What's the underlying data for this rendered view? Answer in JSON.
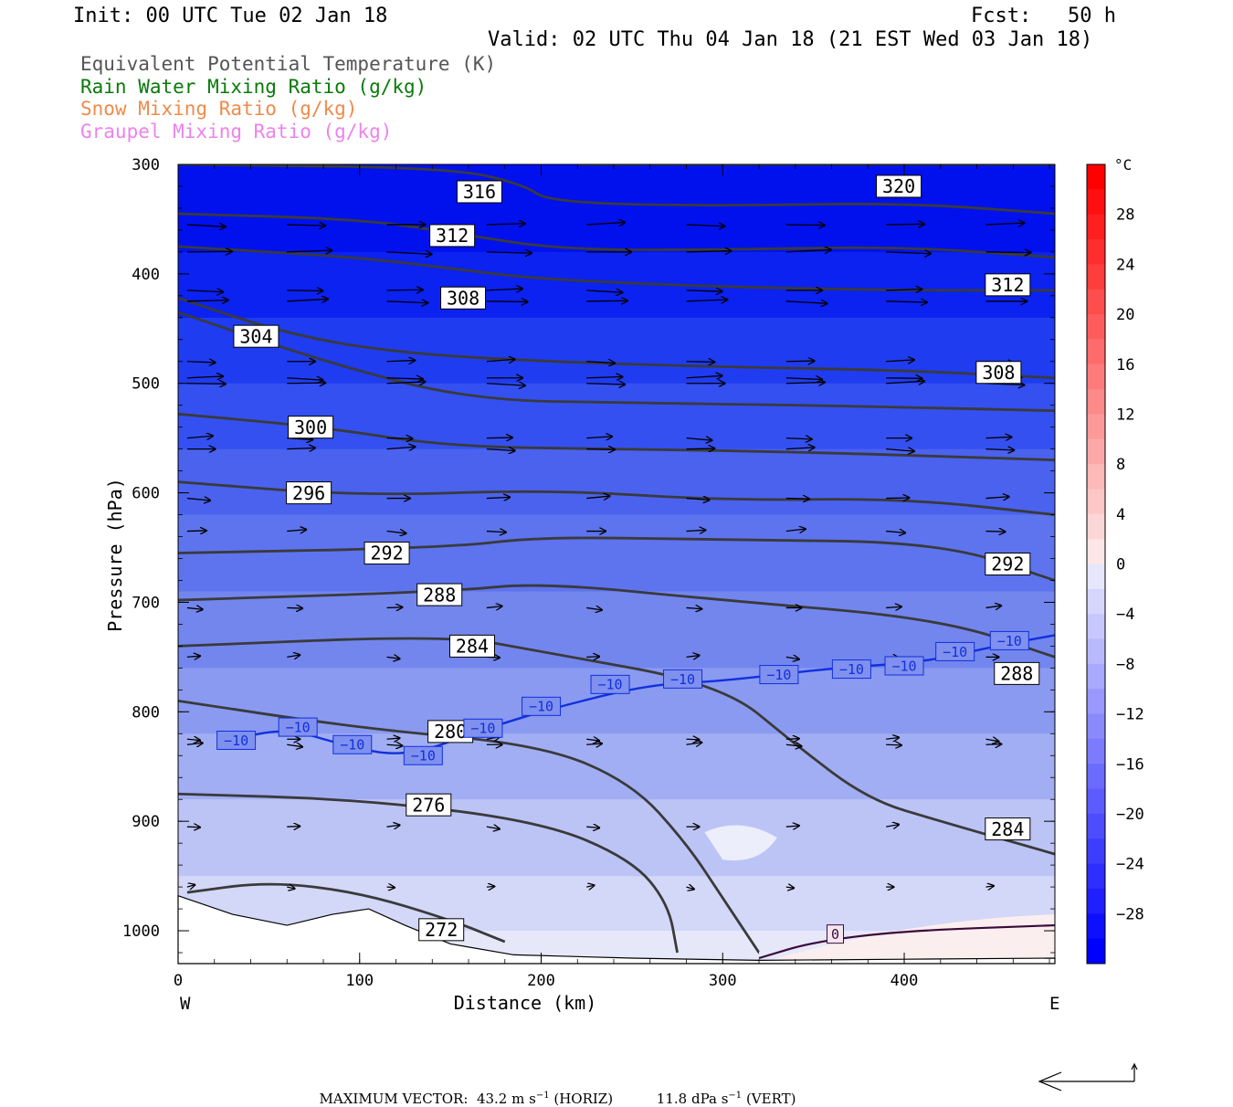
{
  "header": {
    "init": "Init: 00 UTC Tue 02 Jan 18",
    "fcst": "Fcst:   50 h",
    "valid": "Valid: 02 UTC Thu 04 Jan 18 (21 EST Wed 03 Jan 18)"
  },
  "legend": [
    {
      "text": "Equivalent Potential Temperature (K)",
      "color": "#555555"
    },
    {
      "text": "Rain Water Mixing Ratio (g/kg)",
      "color": "#0a7a0a"
    },
    {
      "text": "Snow Mixing Ratio (g/kg)",
      "color": "#f08a4b"
    },
    {
      "text": "Graupel Mixing Ratio (g/kg)",
      "color": "#ee82ee"
    }
  ],
  "chart_data": {
    "type": "contour_cross_section",
    "xlabel": "Distance (km)",
    "ylabel": "Pressure (hPa)",
    "x_ticks": [
      0,
      100,
      200,
      300,
      400
    ],
    "y_ticks": [
      300,
      400,
      500,
      600,
      700,
      800,
      900,
      1000
    ],
    "xlim": [
      0,
      483
    ],
    "ylim": [
      300,
      1030
    ],
    "left_end_label": "W",
    "right_end_label": "E",
    "colorbar": {
      "unit": "°C",
      "ticks": [
        28,
        24,
        20,
        16,
        12,
        8,
        4,
        0,
        -4,
        -8,
        -12,
        -16,
        -20,
        -24,
        -28
      ],
      "tick_labels": [
        "28",
        "24",
        "20",
        "16",
        "12",
        "8",
        "4",
        "0",
        "−4",
        "−8",
        "−12",
        "−16",
        "−20",
        "−24",
        "−28"
      ],
      "range": [
        -32,
        32
      ]
    },
    "theta_e_contours": [
      {
        "label": "316",
        "points": [
          [
            0,
            300
          ],
          [
            150,
            303
          ],
          [
            190,
            318
          ],
          [
            205,
            335
          ],
          [
            300,
            338
          ],
          [
            400,
            335
          ],
          [
            483,
            345
          ]
        ],
        "label_at": [
          166,
          325
        ]
      },
      {
        "label": "320",
        "points": [
          [
            220,
            300
          ],
          [
            483,
            300
          ]
        ],
        "label_at": [
          397,
          320
        ]
      },
      {
        "label": "312",
        "points": [
          [
            0,
            345
          ],
          [
            100,
            350
          ],
          [
            150,
            362
          ],
          [
            210,
            378
          ],
          [
            300,
            378
          ],
          [
            400,
            375
          ],
          [
            483,
            385
          ]
        ],
        "label_at": [
          151,
          365
        ]
      },
      {
        "label": "312",
        "points": [
          [
            0,
            375
          ],
          [
            100,
            385
          ],
          [
            150,
            395
          ],
          [
            200,
            405
          ],
          [
            300,
            412
          ],
          [
            400,
            415
          ],
          [
            483,
            415
          ]
        ],
        "label_at": [
          457,
          410
        ]
      },
      {
        "label": "308",
        "points": [
          [
            0,
            422
          ],
          [
            60,
            455
          ],
          [
            120,
            472
          ],
          [
            200,
            480
          ],
          [
            300,
            485
          ],
          [
            400,
            488
          ],
          [
            483,
            495
          ]
        ],
        "label_at": [
          157,
          422
        ]
      },
      {
        "label": "308",
        "label_at": [
          452,
          490
        ]
      },
      {
        "label": "304",
        "points": [
          [
            0,
            435
          ],
          [
            80,
            480
          ],
          [
            160,
            515
          ],
          [
            250,
            518
          ],
          [
            350,
            520
          ],
          [
            483,
            525
          ]
        ],
        "label_at": [
          43,
          457
        ]
      },
      {
        "label": "300",
        "points": [
          [
            0,
            528
          ],
          [
            80,
            540
          ],
          [
            150,
            558
          ],
          [
            250,
            560
          ],
          [
            350,
            563
          ],
          [
            483,
            570
          ]
        ],
        "label_at": [
          73,
          540
        ]
      },
      {
        "label": "296",
        "points": [
          [
            0,
            590
          ],
          [
            100,
            603
          ],
          [
            205,
            597
          ],
          [
            300,
            607
          ],
          [
            400,
            605
          ],
          [
            483,
            620
          ]
        ],
        "label_at": [
          72,
          600
        ]
      },
      {
        "label": "292",
        "points": [
          [
            0,
            655
          ],
          [
            150,
            650
          ],
          [
            200,
            640
          ],
          [
            300,
            643
          ],
          [
            420,
            645
          ],
          [
            483,
            680
          ]
        ],
        "label_at": [
          115,
          655
        ],
        "label_at_2": [
          457,
          665
        ]
      },
      {
        "label": "288",
        "points": [
          [
            0,
            698
          ],
          [
            150,
            690
          ],
          [
            200,
            682
          ],
          [
            300,
            698
          ],
          [
            420,
            715
          ],
          [
            483,
            750
          ]
        ],
        "label_at": [
          144,
          693
        ],
        "label_at_2": [
          462,
          765
        ]
      },
      {
        "label": "284",
        "points": [
          [
            0,
            740
          ],
          [
            150,
            730
          ],
          [
            200,
            745
          ],
          [
            300,
            775
          ],
          [
            340,
            830
          ],
          [
            380,
            880
          ],
          [
            420,
            900
          ],
          [
            483,
            930
          ]
        ],
        "label_at": [
          162,
          740
        ],
        "label_at_2": [
          457,
          907
        ]
      },
      {
        "label": "280",
        "points": [
          [
            0,
            790
          ],
          [
            100,
            815
          ],
          [
            200,
            830
          ],
          [
            250,
            865
          ],
          [
            280,
            920
          ],
          [
            300,
            970
          ],
          [
            320,
            1020
          ]
        ],
        "label_at": [
          150,
          818
        ]
      },
      {
        "label": "276",
        "points": [
          [
            0,
            875
          ],
          [
            100,
            880
          ],
          [
            200,
            900
          ],
          [
            250,
            935
          ],
          [
            270,
            975
          ],
          [
            275,
            1020
          ]
        ],
        "label_at": [
          138,
          885
        ]
      },
      {
        "label": "272",
        "points": [
          [
            5,
            965
          ],
          [
            50,
            955
          ],
          [
            100,
            965
          ],
          [
            150,
            990
          ],
          [
            180,
            1010
          ]
        ],
        "label_at": [
          145,
          999
        ]
      }
    ],
    "temperature_labels": [
      {
        "label": "−10",
        "points": [
          [
            30,
            825
          ],
          [
            60,
            815
          ],
          [
            90,
            830
          ],
          [
            125,
            842
          ],
          [
            170,
            815
          ],
          [
            210,
            795
          ],
          [
            260,
            775
          ],
          [
            300,
            772
          ],
          [
            360,
            760
          ],
          [
            410,
            755
          ],
          [
            450,
            740
          ],
          [
            483,
            730
          ]
        ]
      },
      {
        "label": "0"
      }
    ],
    "footer": {
      "label": "MAXIMUM VECTOR:",
      "horiz_value": "43.2",
      "vert_value": "11.8",
      "horiz_unit_main": "m s",
      "horiz_unit_exp": "−1",
      "horiz_tag": "(HORIZ)",
      "vert_unit_main": "dPa s",
      "vert_unit_exp": "−1",
      "vert_tag": "(VERT)"
    }
  }
}
